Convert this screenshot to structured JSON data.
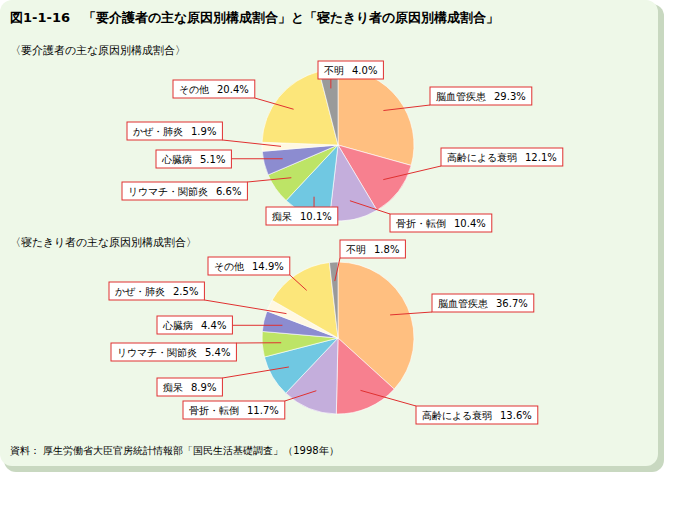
{
  "title": "図1-1-16　「要介護者の主な原因別構成割合」と「寝たきり者の原因別構成割合」",
  "source": "資料： 厚生労働省大臣官房統計情報部「国民生活基礎調査」（1998年）",
  "chart_data": [
    {
      "type": "pie",
      "title": "〈要介護者の主な原因別構成割合〉",
      "categories": [
        "脳血管疾患",
        "高齢による衰弱",
        "骨折・転倒",
        "痴呆",
        "リウマチ・関節炎",
        "心臓病",
        "かぜ・肺炎",
        "その他",
        "不明"
      ],
      "values": [
        29.3,
        12.1,
        10.4,
        10.1,
        6.6,
        5.1,
        1.9,
        20.4,
        4.0
      ],
      "value_labels": [
        "29.3%",
        "12.1%",
        "10.4%",
        "10.1%",
        "6.6%",
        "5.1%",
        "1.9%",
        "20.4%",
        "4.0%"
      ],
      "colors": [
        "#ffbf80",
        "#f7808f",
        "#c4aedc",
        "#70c8e2",
        "#bde466",
        "#8c8cd0",
        "#fff8e2",
        "#fce67a",
        "#9a9a9a"
      ],
      "data_labels": true
    },
    {
      "type": "pie",
      "title": "〈寝たきり者の主な原因別構成割合〉",
      "categories": [
        "脳血管疾患",
        "高齢による衰弱",
        "骨折・転倒",
        "痴呆",
        "リウマチ・関節炎",
        "心臓病",
        "かぜ・肺炎",
        "その他",
        "不明"
      ],
      "values": [
        36.7,
        13.6,
        11.7,
        8.9,
        5.4,
        4.4,
        2.5,
        14.9,
        1.8
      ],
      "value_labels": [
        "36.7%",
        "13.6%",
        "11.7%",
        "8.9%",
        "5.4%",
        "4.4%",
        "2.5%",
        "14.9%",
        "1.8%"
      ],
      "colors": [
        "#ffbf80",
        "#f7808f",
        "#c4aedc",
        "#70c8e2",
        "#bde466",
        "#8c8cd0",
        "#fff8e2",
        "#fce67a",
        "#9a9a9a"
      ],
      "data_labels": true
    }
  ]
}
